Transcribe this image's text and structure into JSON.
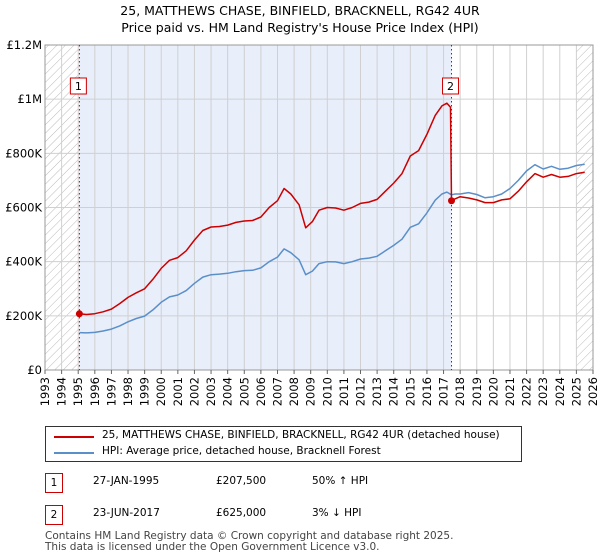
{
  "chart_data": {
    "type": "line",
    "title": "25, MATTHEWS CHASE, BINFIELD, BRACKNELL, RG42 4UR",
    "subtitle": "Price paid vs. HM Land Registry's House Price Index (HPI)",
    "xlabel": "",
    "ylabel": "",
    "xlim": [
      1993,
      2026
    ],
    "ylim": [
      0,
      1200000
    ],
    "y_ticks": [
      {
        "value": 0,
        "label": "£0"
      },
      {
        "value": 200000,
        "label": "£200K"
      },
      {
        "value": 400000,
        "label": "£400K"
      },
      {
        "value": 600000,
        "label": "£600K"
      },
      {
        "value": 800000,
        "label": "£800K"
      },
      {
        "value": 1000000,
        "label": "£1M"
      },
      {
        "value": 1200000,
        "label": "£1.2M"
      }
    ],
    "x_ticks": [
      "1993",
      "1994",
      "1995",
      "1996",
      "1997",
      "1998",
      "1999",
      "2000",
      "2001",
      "2002",
      "2003",
      "2004",
      "2005",
      "2006",
      "2007",
      "2008",
      "2009",
      "2010",
      "2011",
      "2012",
      "2013",
      "2014",
      "2015",
      "2016",
      "2017",
      "2018",
      "2019",
      "2020",
      "2021",
      "2022",
      "2023",
      "2024",
      "2025",
      "2026"
    ],
    "grid": true,
    "hatched_before": 1995.0,
    "hatched_after": 2025.0,
    "series": [
      {
        "name": "25, MATTHEWS CHASE, BINFIELD, BRACKNELL, RG42 4UR (detached house)",
        "color": "#cc0000",
        "x": [
          1995.07,
          1995.5,
          1996.0,
          1996.5,
          1997.0,
          1997.5,
          1998.0,
          1998.5,
          1999.0,
          1999.5,
          2000.0,
          2000.5,
          2001.0,
          2001.5,
          2002.0,
          2002.5,
          2003.0,
          2003.5,
          2004.0,
          2004.5,
          2005.0,
          2005.5,
          2006.0,
          2006.5,
          2007.0,
          2007.4,
          2007.8,
          2008.3,
          2008.7,
          2009.1,
          2009.5,
          2010.0,
          2010.5,
          2011.0,
          2011.5,
          2012.0,
          2012.5,
          2013.0,
          2013.5,
          2014.0,
          2014.5,
          2015.0,
          2015.5,
          2016.0,
          2016.5,
          2016.9,
          2017.2,
          2017.42,
          2017.48,
          2017.7,
          2018.0,
          2018.5,
          2019.0,
          2019.5,
          2020.0,
          2020.5,
          2021.0,
          2021.5,
          2022.0,
          2022.5,
          2023.0,
          2023.5,
          2024.0,
          2024.5,
          2025.0,
          2025.5
        ],
        "values": [
          207500,
          205000,
          208000,
          215000,
          225000,
          245000,
          268000,
          285000,
          300000,
          335000,
          375000,
          405000,
          415000,
          440000,
          480000,
          515000,
          528000,
          530000,
          535000,
          545000,
          550000,
          552000,
          565000,
          600000,
          625000,
          670000,
          650000,
          610000,
          525000,
          548000,
          590000,
          600000,
          598000,
          590000,
          600000,
          615000,
          620000,
          630000,
          660000,
          690000,
          725000,
          790000,
          810000,
          870000,
          940000,
          975000,
          985000,
          970000,
          625000,
          632000,
          640000,
          635000,
          628000,
          618000,
          618000,
          628000,
          632000,
          660000,
          695000,
          725000,
          712000,
          722000,
          712000,
          715000,
          725000,
          730000
        ]
      },
      {
        "name": "HPI: Average price, detached house, Bracknell Forest",
        "color": "#5b8fc9",
        "x": [
          1995.07,
          1995.5,
          1996.0,
          1996.5,
          1997.0,
          1997.5,
          1998.0,
          1998.5,
          1999.0,
          1999.5,
          2000.0,
          2000.5,
          2001.0,
          2001.5,
          2002.0,
          2002.5,
          2003.0,
          2003.5,
          2004.0,
          2004.5,
          2005.0,
          2005.5,
          2006.0,
          2006.5,
          2007.0,
          2007.4,
          2007.8,
          2008.3,
          2008.7,
          2009.1,
          2009.5,
          2010.0,
          2010.5,
          2011.0,
          2011.5,
          2012.0,
          2012.5,
          2013.0,
          2013.5,
          2014.0,
          2014.5,
          2015.0,
          2015.5,
          2016.0,
          2016.5,
          2016.9,
          2017.2,
          2017.48,
          2017.7,
          2018.0,
          2018.5,
          2019.0,
          2019.5,
          2020.0,
          2020.5,
          2021.0,
          2021.5,
          2022.0,
          2022.5,
          2023.0,
          2023.5,
          2024.0,
          2024.5,
          2025.0,
          2025.5
        ],
        "values": [
          138000,
          137000,
          139000,
          144000,
          151000,
          163000,
          178000,
          190000,
          199000,
          222000,
          250000,
          270000,
          277000,
          293000,
          320000,
          343000,
          352000,
          354000,
          357000,
          363000,
          367000,
          368000,
          377000,
          400000,
          417000,
          447000,
          433000,
          407000,
          352000,
          365000,
          393000,
          400000,
          399000,
          393000,
          400000,
          410000,
          413000,
          420000,
          440000,
          460000,
          483000,
          527000,
          540000,
          580000,
          627000,
          650000,
          657000,
          647000,
          650000,
          650000,
          655000,
          648000,
          636000,
          640000,
          650000,
          670000,
          700000,
          735000,
          758000,
          742000,
          752000,
          741000,
          745000,
          755000,
          760000
        ]
      }
    ],
    "sales": [
      {
        "n": "1",
        "x": 1995.07,
        "value": 207500,
        "date": "27-JAN-1995",
        "price": "£207,500",
        "hpi": "50% ↑ HPI"
      },
      {
        "n": "2",
        "x": 2017.48,
        "value": 625000,
        "date": "23-JUN-2017",
        "price": "£625,000",
        "hpi": "3% ↓ HPI"
      }
    ]
  },
  "legend": {
    "property_label": "25, MATTHEWS CHASE, BINFIELD, BRACKNELL, RG42 4UR (detached house)",
    "hpi_label": "HPI: Average price, detached house, Bracknell Forest"
  },
  "footer": {
    "line1": "Contains HM Land Registry data © Crown copyright and database right 2025.",
    "line2": "This data is licensed under the Open Government Licence v3.0."
  },
  "colors": {
    "property": "#cc0000",
    "hpi": "#5b8fc9",
    "band": "#e8eefa",
    "hatch": "#bbbbbb",
    "grid": "#d0d0d0"
  }
}
